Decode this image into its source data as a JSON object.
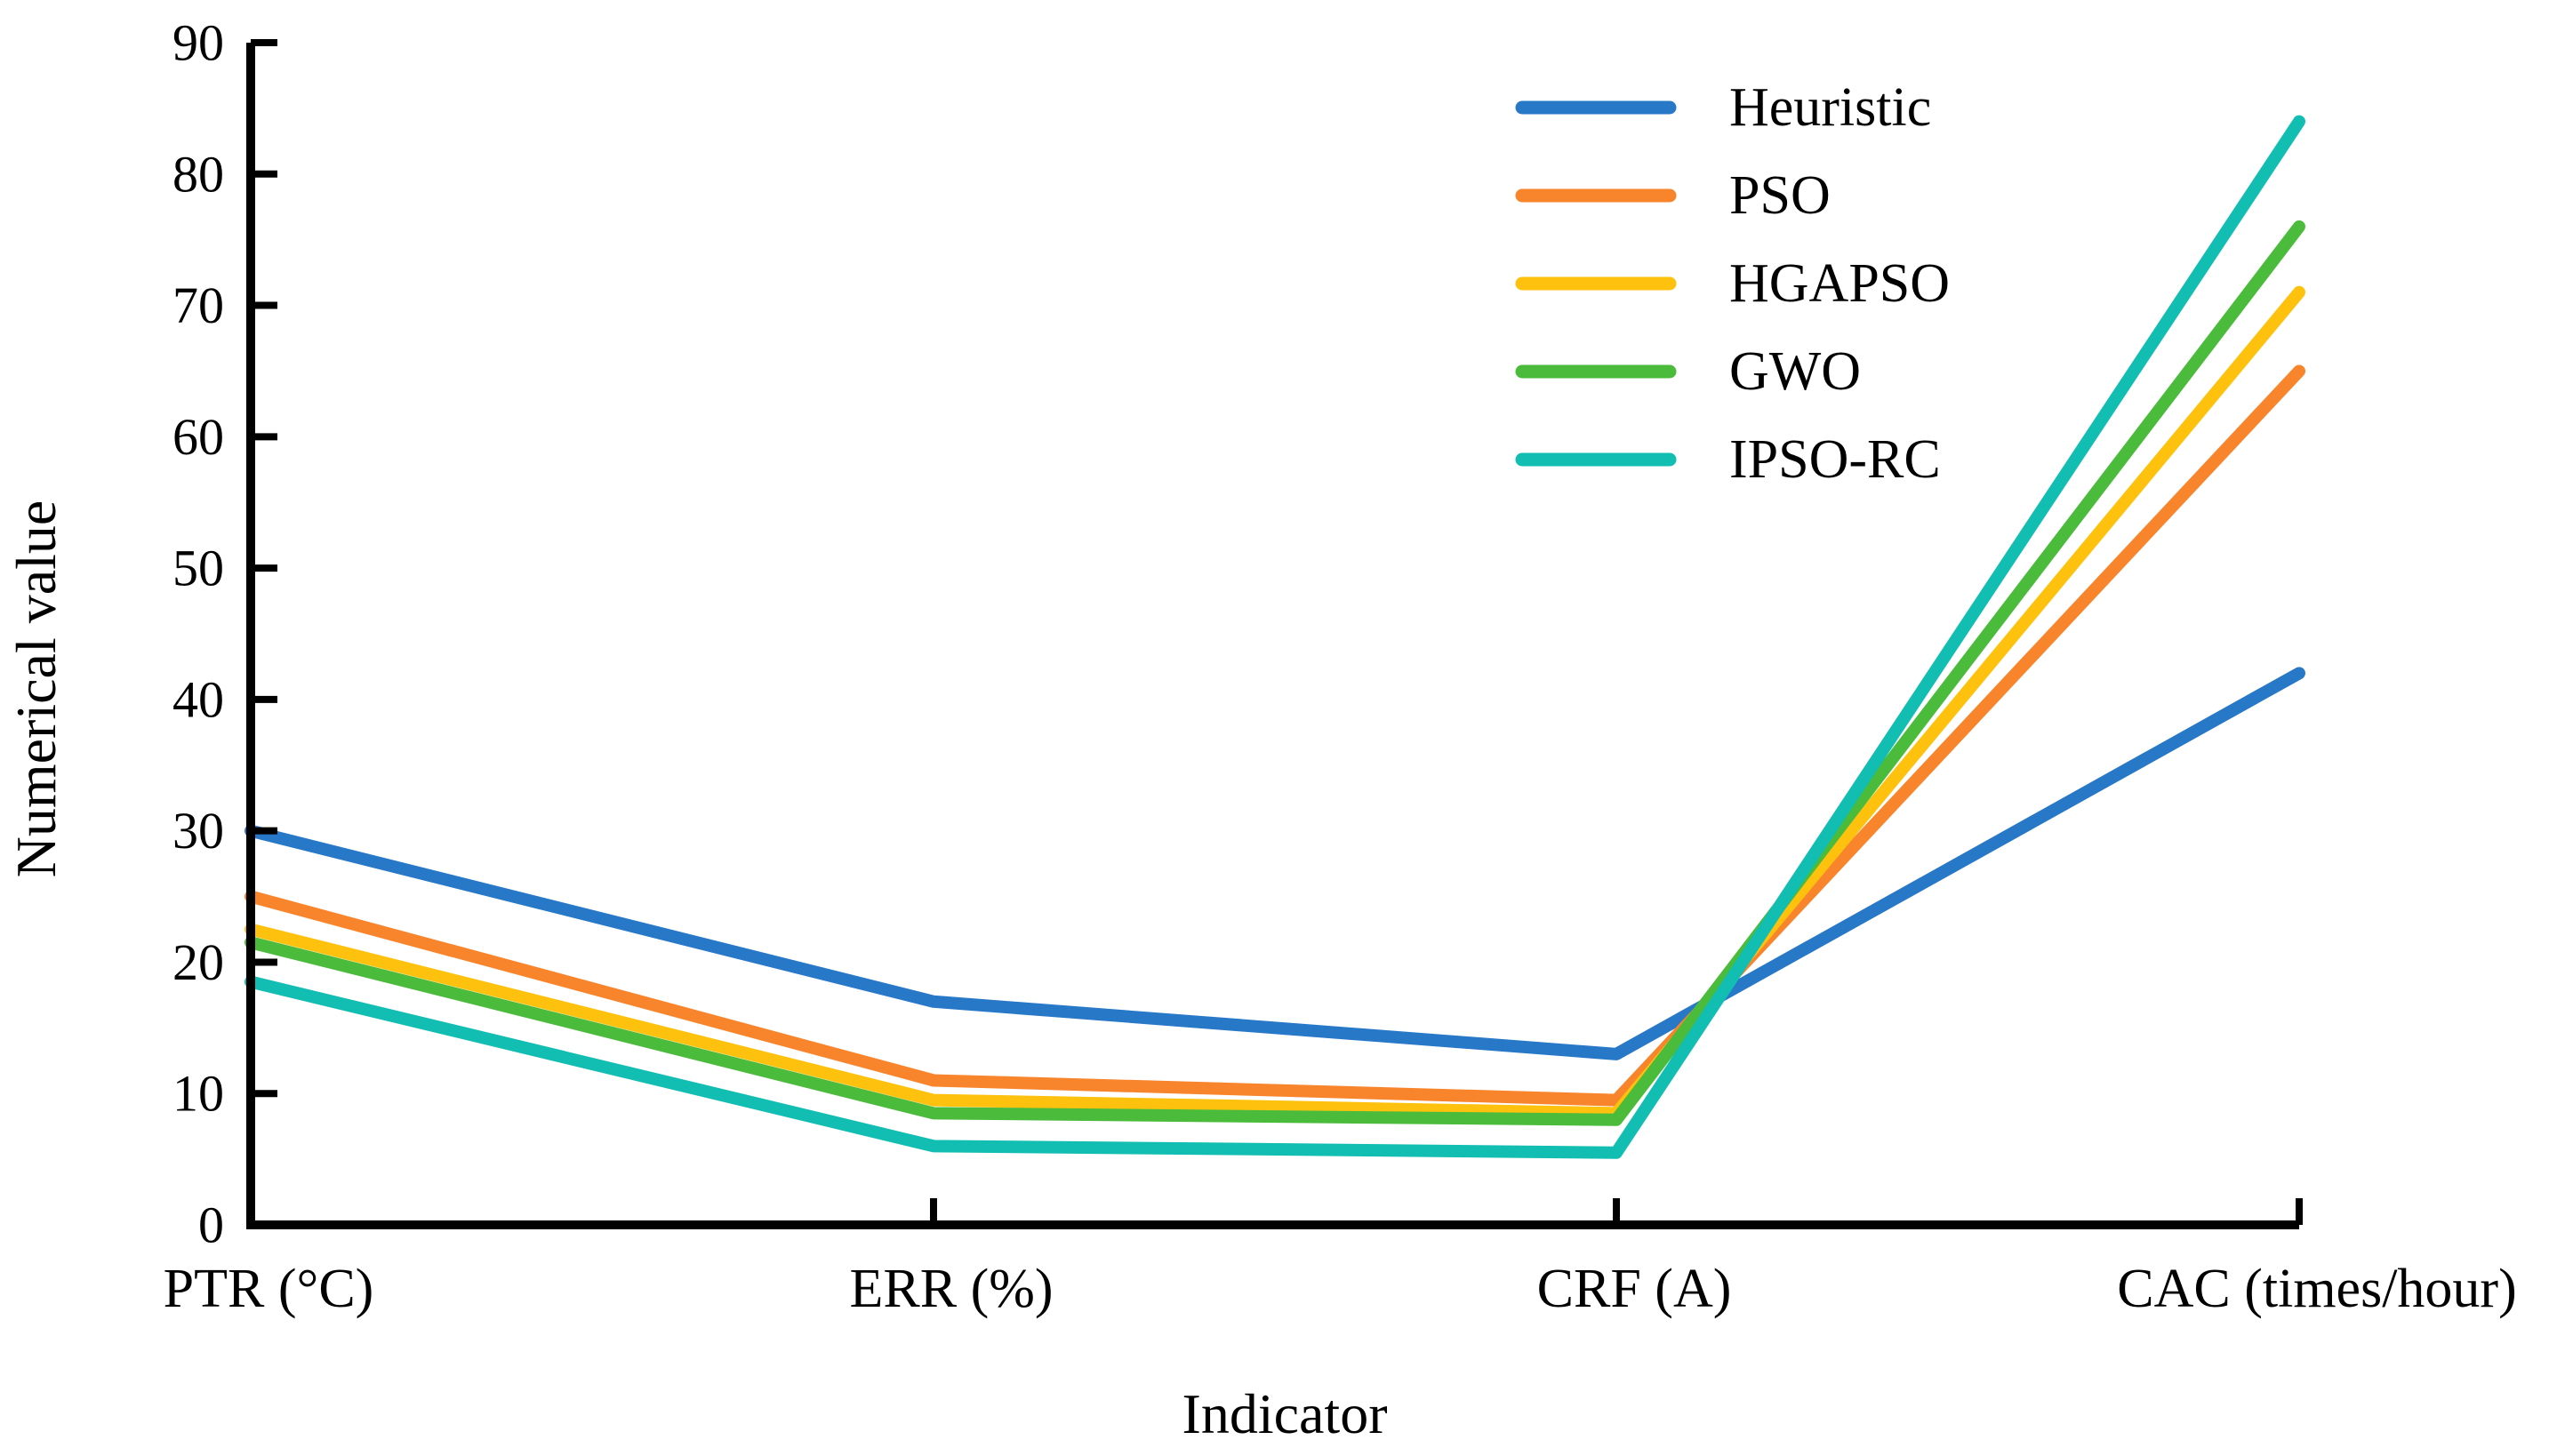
{
  "figure": {
    "background": "#ffffff",
    "axis_color": "#000000"
  },
  "chart_data": {
    "type": "line",
    "title": "",
    "xlabel": "Indicator",
    "ylabel": "Numerical value",
    "categories": [
      "PTR (°C)",
      "ERR (%)",
      "CRF (A)",
      "CAC (times/hour)"
    ],
    "y_ticks": [
      0,
      10,
      20,
      30,
      40,
      50,
      60,
      70,
      80,
      90
    ],
    "ylim": [
      0,
      90
    ],
    "grid": false,
    "legend_position": "upper-center-right-no-frame",
    "line_width": 14,
    "series": [
      {
        "name": "Heuristic",
        "color": "#2878C8",
        "values": [
          30,
          17,
          13,
          42
        ]
      },
      {
        "name": "PSO",
        "color": "#F8842C",
        "values": [
          25,
          11,
          9.5,
          65
        ]
      },
      {
        "name": "HGAPSO",
        "color": "#FDC10E",
        "values": [
          22.5,
          9.5,
          8.5,
          71
        ]
      },
      {
        "name": "GWO",
        "color": "#4ABB3B",
        "values": [
          21.5,
          8.5,
          8,
          76
        ]
      },
      {
        "name": "IPSO-RC",
        "color": "#12BDB2",
        "values": [
          18.5,
          6,
          5.5,
          84
        ]
      }
    ]
  }
}
